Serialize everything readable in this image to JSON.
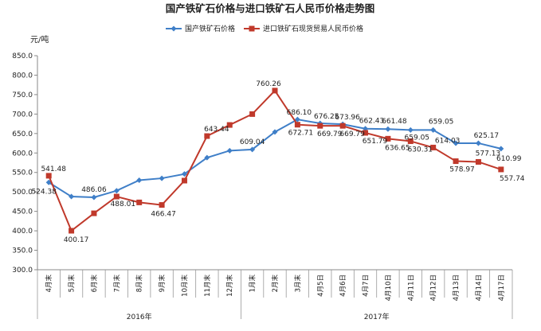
{
  "chart_data": {
    "type": "line",
    "title": "国产铁矿石价格与进口铁矿石人民币价格走势图",
    "ylabel": "元/吨",
    "ylim": [
      300,
      850
    ],
    "yticks": [
      "300.0",
      "350.0",
      "400.0",
      "450.0",
      "500.0",
      "550.0",
      "600.0",
      "650.0",
      "700.0",
      "750.0",
      "800.0",
      "850.0"
    ],
    "grid": false,
    "legend_position": "top",
    "categories": [
      "4月末",
      "5月末",
      "6月末",
      "7月末",
      "8月末",
      "9月末",
      "10月末",
      "11月末",
      "12月末",
      "1月末",
      "2月末",
      "3月末",
      "4月5日",
      "4月6日",
      "4月7日",
      "4月10日",
      "4月11日",
      "4月12日",
      "4月13日",
      "4月14日",
      "4月17日"
    ],
    "year_groups": [
      {
        "label": "2016年",
        "start": 0,
        "end": 8
      },
      {
        "label": "2017年",
        "start": 9,
        "end": 20
      }
    ],
    "series": [
      {
        "name": "国产铁矿石价格",
        "color": "#3f7fc8",
        "marker": "diamond",
        "values": [
          524.38,
          488,
          486.06,
          503,
          530,
          535,
          546,
          588,
          606,
          609.04,
          654,
          686.1,
          676.25,
          673.96,
          662.43,
          661.48,
          659.05,
          659.05,
          625.17,
          625.17,
          610.99
        ],
        "labels": {
          "0": "524.38",
          "2": "486.06",
          "9": "609.04",
          "11": "686.10",
          "12": "676.25",
          "13": "673.96",
          "14": "662.43",
          "15": "661.48",
          "16": "659.05",
          "17": "659.05",
          "19": "625.17",
          "20": "610.99"
        }
      },
      {
        "name": "进口铁矿石现货贸易人民币价格",
        "color": "#c0392b",
        "marker": "square",
        "values": [
          541.48,
          400.17,
          445,
          488.01,
          473,
          466.47,
          529,
          643.44,
          672,
          700,
          760.26,
          672.71,
          669.79,
          669.79,
          651.79,
          636.65,
          630.31,
          614.03,
          578.97,
          577.13,
          557.74
        ],
        "labels": {
          "0": "541.48",
          "1": "400.17",
          "3": "488.01",
          "5": "466.47",
          "7": "643.44",
          "10": "760.26",
          "11": "672.71",
          "12": "669.79",
          "13": "669.79",
          "14": "651.79",
          "15": "636.65",
          "16": "630.31",
          "17": "614.03",
          "18": "578.97",
          "19": "577.13",
          "20": "557.74"
        }
      }
    ]
  }
}
